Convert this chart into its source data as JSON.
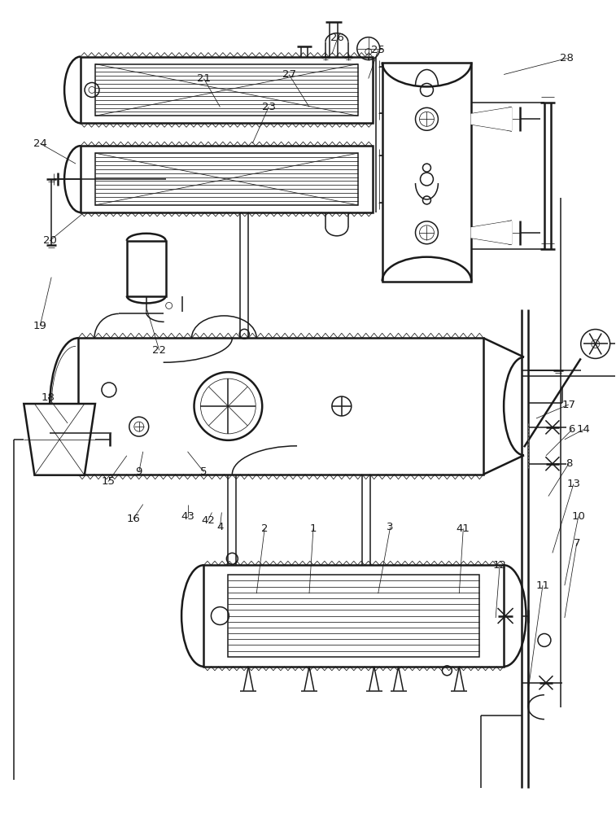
{
  "fig_width": 7.57,
  "fig_height": 10.0,
  "dpi": 100,
  "bg": "#ffffff",
  "lc": "#1a1a1a",
  "lw1": 1.8,
  "lw2": 1.1,
  "lw3": 0.55,
  "fs": 9.5
}
